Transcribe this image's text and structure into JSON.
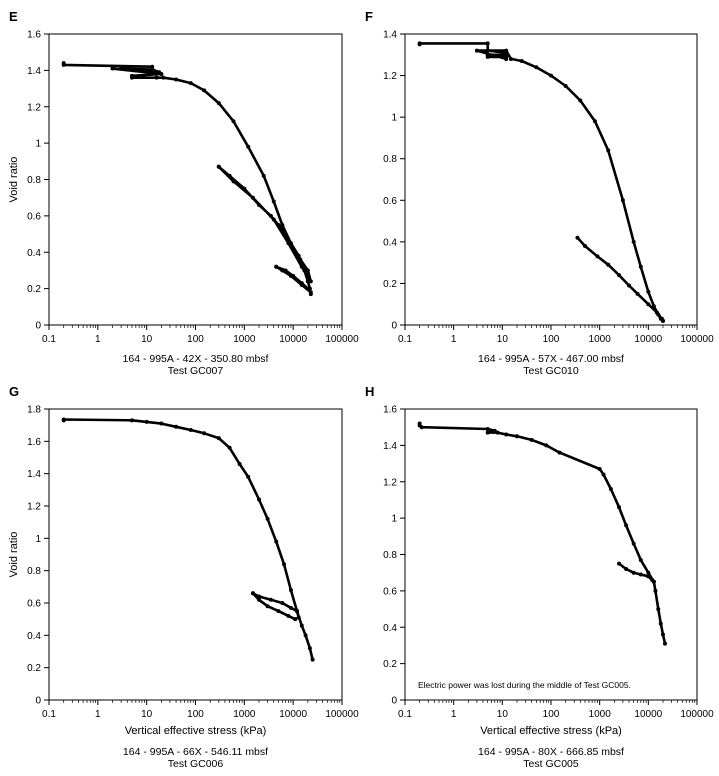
{
  "chart_data": [
    {
      "type": "scatter",
      "panel_letter": "E",
      "x_scale": "log",
      "xlim": [
        0.1,
        100000
      ],
      "ylim": [
        0,
        1.6
      ],
      "x_ticks": [
        "0.1",
        "1",
        "10",
        "100",
        "1000",
        "10000",
        "100000"
      ],
      "y_ticks": [
        "0",
        "0.2",
        "0.4",
        "0.6",
        "0.8",
        "1",
        "1.2",
        "1.4",
        "1.6"
      ],
      "xlabel": "",
      "ylabel": "Void ratio",
      "caption_1": "164 - 995A - 42X - 350.80 mbsf",
      "caption_2": "Test GC007",
      "note": "",
      "series": [
        {
          "x": [
            0.2,
            0.2,
            13,
            13,
            3,
            13,
            18,
            6,
            2,
            20,
            5,
            5,
            16,
            22,
            40,
            80,
            150,
            300,
            600,
            1200,
            2500,
            4000,
            6000,
            9000,
            13000,
            17000,
            20000,
            22000,
            23000
          ],
          "y": [
            1.44,
            1.43,
            1.42,
            1.405,
            1.41,
            1.405,
            1.39,
            1.4,
            1.41,
            1.38,
            1.37,
            1.36,
            1.36,
            1.36,
            1.35,
            1.33,
            1.29,
            1.22,
            1.12,
            0.98,
            0.82,
            0.68,
            0.55,
            0.45,
            0.38,
            0.3,
            0.24,
            0.2,
            0.17
          ]
        },
        {
          "x": [
            300,
            500,
            1000,
            2000,
            3500,
            5000,
            7000,
            10000,
            14000,
            20000,
            23000,
            15000,
            8000,
            4000,
            1500,
            600,
            300
          ],
          "y": [
            0.87,
            0.82,
            0.75,
            0.66,
            0.6,
            0.55,
            0.5,
            0.42,
            0.36,
            0.3,
            0.24,
            0.32,
            0.45,
            0.58,
            0.7,
            0.79,
            0.87
          ]
        },
        {
          "x": [
            4500,
            7000,
            10000,
            15000,
            20000,
            23000,
            15000,
            9000,
            6000,
            4500
          ],
          "y": [
            0.32,
            0.3,
            0.27,
            0.23,
            0.2,
            0.18,
            0.22,
            0.27,
            0.3,
            0.32
          ]
        }
      ]
    },
    {
      "type": "scatter",
      "panel_letter": "F",
      "x_scale": "log",
      "xlim": [
        0.1,
        100000
      ],
      "ylim": [
        0,
        1.4
      ],
      "x_ticks": [
        "0.1",
        "1",
        "10",
        "100",
        "1000",
        "10000",
        "100000"
      ],
      "y_ticks": [
        "0",
        "0.2",
        "0.4",
        "0.6",
        "0.8",
        "1",
        "1.2",
        "1.4"
      ],
      "xlabel": "",
      "ylabel": "",
      "caption_1": "164 - 995A - 57X - 467.00 mbsf",
      "caption_2": "Test GC010",
      "note": "",
      "series": [
        {
          "x": [
            0.2,
            0.2,
            5,
            5,
            12,
            12,
            5,
            5,
            12,
            12,
            3,
            12,
            15,
            25,
            50,
            100,
            200,
            400,
            800,
            1500,
            3000,
            5000,
            7000,
            10000,
            13000,
            16000,
            18000,
            20000
          ],
          "y": [
            1.35,
            1.355,
            1.355,
            1.32,
            1.31,
            1.3,
            1.3,
            1.29,
            1.29,
            1.28,
            1.32,
            1.32,
            1.28,
            1.27,
            1.24,
            1.2,
            1.15,
            1.08,
            0.98,
            0.84,
            0.6,
            0.4,
            0.28,
            0.16,
            0.09,
            0.05,
            0.03,
            0.02
          ]
        },
        {
          "x": [
            350,
            500,
            900,
            1500,
            2500,
            4000,
            6000,
            10000,
            15000,
            19000,
            20000
          ],
          "y": [
            0.42,
            0.38,
            0.33,
            0.29,
            0.24,
            0.19,
            0.15,
            0.1,
            0.06,
            0.03,
            0.02
          ]
        }
      ]
    },
    {
      "type": "scatter",
      "panel_letter": "G",
      "x_scale": "log",
      "xlim": [
        0.1,
        100000
      ],
      "ylim": [
        0,
        1.8
      ],
      "x_ticks": [
        "0.1",
        "1",
        "10",
        "100",
        "1000",
        "10000",
        "100000"
      ],
      "y_ticks": [
        "0",
        "0.2",
        "0.4",
        "0.6",
        "0.8",
        "1",
        "1.2",
        "1.4",
        "1.6",
        "1.8"
      ],
      "xlabel": "Vertical effective stress (kPa)",
      "ylabel": "Void ratio",
      "caption_1": "164 - 995A - 66X - 546.11 mbsf",
      "caption_2": "Test GC006",
      "note": "",
      "series": [
        {
          "x": [
            0.2,
            0.2,
            5,
            10,
            20,
            40,
            80,
            150,
            300,
            500,
            800,
            1200,
            2000,
            3000,
            4500,
            6500,
            9000,
            12000,
            15000,
            18000,
            22000,
            25000
          ],
          "y": [
            1.73,
            1.735,
            1.73,
            1.72,
            1.71,
            1.69,
            1.67,
            1.65,
            1.62,
            1.56,
            1.46,
            1.38,
            1.24,
            1.12,
            0.98,
            0.84,
            0.68,
            0.55,
            0.46,
            0.4,
            0.32,
            0.25
          ]
        },
        {
          "x": [
            1500,
            2000,
            3000,
            5000,
            8000,
            11000,
            13000,
            12000,
            9000,
            6000,
            3500,
            2000,
            1500
          ],
          "y": [
            0.66,
            0.62,
            0.58,
            0.55,
            0.52,
            0.5,
            0.51,
            0.55,
            0.57,
            0.6,
            0.62,
            0.64,
            0.66
          ]
        }
      ]
    },
    {
      "type": "scatter",
      "panel_letter": "H",
      "x_scale": "log",
      "xlim": [
        0.1,
        100000
      ],
      "ylim": [
        0,
        1.6
      ],
      "x_ticks": [
        "0.1",
        "1",
        "10",
        "100",
        "1000",
        "10000",
        "100000"
      ],
      "y_ticks": [
        "0",
        "0.2",
        "0.4",
        "0.6",
        "0.8",
        "1",
        "1.2",
        "1.4",
        "1.6"
      ],
      "xlabel": "Vertical effective stress (kPa)",
      "ylabel": "",
      "caption_1": "164 - 995A - 80X - 666.85 mbsf",
      "caption_2": "Test GC005",
      "note": "Electric power was lost during the middle of Test GC005.",
      "series": [
        {
          "x": [
            0.2,
            0.2,
            0.22,
            5,
            7,
            5,
            8,
            12,
            20,
            40,
            80,
            150,
            1000,
            1200,
            1700,
            2500,
            3500,
            5000,
            7000,
            10000,
            13000
          ],
          "y": [
            1.52,
            1.51,
            1.5,
            1.49,
            1.48,
            1.47,
            1.47,
            1.46,
            1.45,
            1.43,
            1.4,
            1.36,
            1.27,
            1.24,
            1.16,
            1.06,
            0.96,
            0.86,
            0.77,
            0.7,
            0.65
          ]
        },
        {
          "x": [
            2500,
            3500,
            5000,
            7000,
            10000,
            12000,
            13000,
            14000,
            16000,
            18000,
            20000,
            22000
          ],
          "y": [
            0.75,
            0.72,
            0.7,
            0.69,
            0.68,
            0.66,
            0.65,
            0.6,
            0.5,
            0.42,
            0.36,
            0.31
          ]
        }
      ]
    }
  ]
}
